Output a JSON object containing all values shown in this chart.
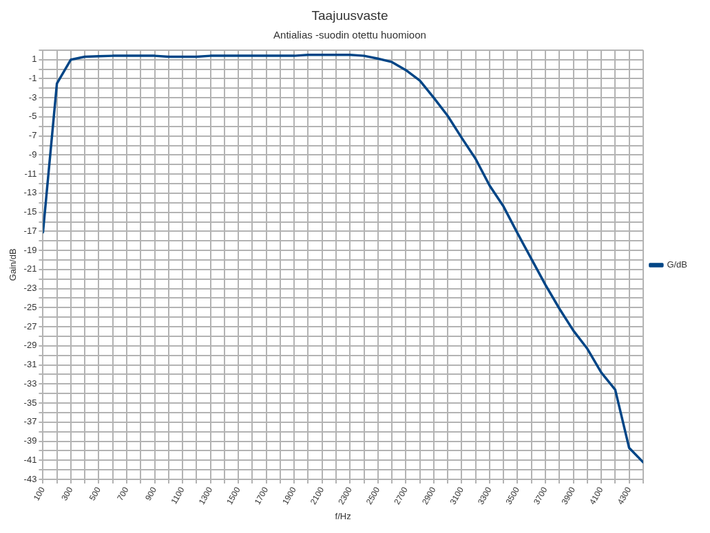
{
  "chart_data": {
    "type": "line",
    "title": "Taajuusvaste",
    "subtitle": "Antialias -suodin otettu huomioon",
    "xlabel": "f/Hz",
    "ylabel": "Gain/dB",
    "x": [
      100,
      200,
      300,
      400,
      500,
      600,
      700,
      800,
      900,
      1000,
      1100,
      1200,
      1300,
      1400,
      1500,
      1600,
      1700,
      1800,
      1900,
      2000,
      2100,
      2200,
      2300,
      2400,
      2500,
      2600,
      2700,
      2800,
      2900,
      3000,
      3100,
      3200,
      3300,
      3400,
      3500,
      3600,
      3700,
      3800,
      3900,
      4000,
      4100,
      4200,
      4300,
      4400
    ],
    "series": [
      {
        "name": "G/dB",
        "color": "#004586",
        "values": [
          -17.1,
          -1.5,
          1.0,
          1.3,
          1.35,
          1.4,
          1.4,
          1.4,
          1.4,
          1.3,
          1.3,
          1.3,
          1.4,
          1.4,
          1.4,
          1.4,
          1.4,
          1.4,
          1.4,
          1.5,
          1.5,
          1.5,
          1.5,
          1.4,
          1.1,
          0.75,
          -0.1,
          -1.2,
          -3.0,
          -4.9,
          -7.2,
          -9.4,
          -12.2,
          -14.4,
          -17.2,
          -19.9,
          -22.6,
          -25.1,
          -27.4,
          -29.3,
          -31.8,
          -33.6,
          -39.7,
          -41.2
        ]
      }
    ],
    "xlim": [
      100,
      4400
    ],
    "xticks": [
      100,
      {
        "value": 200,
        "label": null
      },
      300,
      {
        "value": 400,
        "label": null
      },
      500,
      {
        "value": 600,
        "label": null
      },
      700,
      {
        "value": 800,
        "label": null
      },
      900,
      {
        "value": 1000,
        "label": null
      },
      1100,
      {
        "value": 1200,
        "label": null
      },
      1300,
      {
        "value": 1400,
        "label": null
      },
      1500,
      {
        "value": 1600,
        "label": null
      },
      1700,
      {
        "value": 1800,
        "label": null
      },
      1900,
      {
        "value": 2000,
        "label": null
      },
      2100,
      {
        "value": 2200,
        "label": null
      },
      2300,
      {
        "value": 2400,
        "label": null
      },
      2500,
      {
        "value": 2600,
        "label": null
      },
      2700,
      {
        "value": 2800,
        "label": null
      },
      2900,
      {
        "value": 3000,
        "label": null
      },
      3100,
      {
        "value": 3200,
        "label": null
      },
      3300,
      {
        "value": 3400,
        "label": null
      },
      3500,
      {
        "value": 3600,
        "label": null
      },
      3700,
      {
        "value": 3800,
        "label": null
      },
      3900,
      {
        "value": 4000,
        "label": null
      },
      4100,
      {
        "value": 4200,
        "label": null
      },
      4300,
      {
        "value": 4400,
        "label": null
      }
    ],
    "ylim": [
      -43,
      2
    ],
    "yticks": [
      -43,
      {
        "value": -42,
        "label": null
      },
      -41,
      {
        "value": -40,
        "label": null
      },
      -39,
      {
        "value": -38,
        "label": null
      },
      -37,
      {
        "value": -36,
        "label": null
      },
      -35,
      {
        "value": -34,
        "label": null
      },
      -33,
      {
        "value": -32,
        "label": null
      },
      -31,
      {
        "value": -30,
        "label": null
      },
      -29,
      {
        "value": -28,
        "label": null
      },
      -27,
      {
        "value": -26,
        "label": null
      },
      -25,
      {
        "value": -24,
        "label": null
      },
      -23,
      {
        "value": -22,
        "label": null
      },
      -21,
      {
        "value": -20,
        "label": null
      },
      -19,
      {
        "value": -18,
        "label": null
      },
      -17,
      {
        "value": -16,
        "label": null
      },
      -15,
      {
        "value": -14,
        "label": null
      },
      -13,
      {
        "value": -12,
        "label": null
      },
      -11,
      {
        "value": -10,
        "label": null
      },
      -9,
      {
        "value": -8,
        "label": null
      },
      -7,
      {
        "value": -6,
        "label": null
      },
      -5,
      {
        "value": -4,
        "label": null
      },
      -3,
      {
        "value": -2,
        "label": null
      },
      -1,
      {
        "value": 0,
        "label": null
      },
      1,
      {
        "value": 2,
        "label": null
      }
    ],
    "grid": true,
    "legend": "right",
    "marker": "none",
    "line_style": "solid"
  }
}
